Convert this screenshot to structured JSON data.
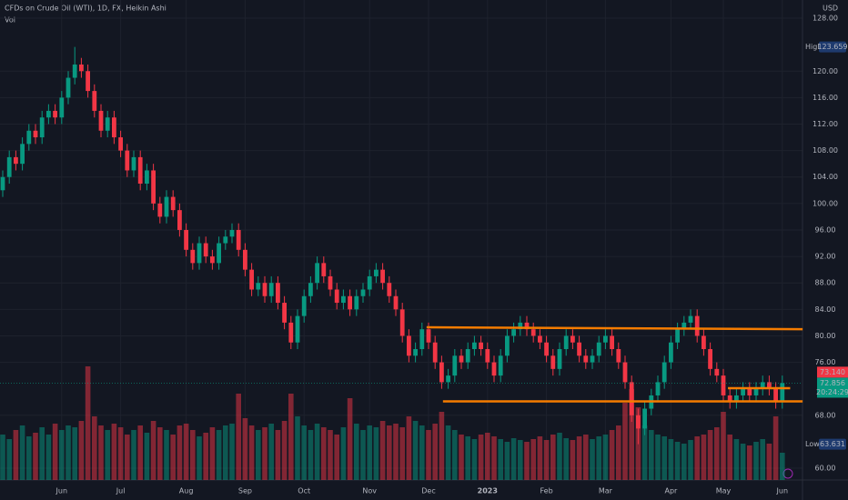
{
  "chart_data": {
    "type": "candlestick",
    "title": "CFDs on Crude Oil (WTI), 1D, FX, Heikin Ashi",
    "volume_title": "Vol",
    "currency": "USD",
    "up_color": "#089981",
    "down_color": "#f23645",
    "grid": true,
    "categories": [
      null,
      null,
      null,
      null,
      null,
      null,
      null,
      null,
      null,
      "Jun",
      null,
      null,
      null,
      null,
      null,
      null,
      null,
      null,
      "Jul",
      null,
      null,
      null,
      null,
      null,
      null,
      null,
      null,
      null,
      "Aug",
      null,
      null,
      null,
      null,
      null,
      null,
      null,
      null,
      "Sep",
      null,
      null,
      null,
      null,
      null,
      null,
      null,
      null,
      "Oct",
      null,
      null,
      null,
      null,
      null,
      null,
      null,
      null,
      null,
      "Nov",
      null,
      null,
      null,
      null,
      null,
      null,
      null,
      null,
      "Dec",
      null,
      null,
      null,
      null,
      null,
      null,
      null,
      null,
      "2023",
      null,
      null,
      null,
      null,
      null,
      null,
      null,
      null,
      "Feb",
      null,
      null,
      null,
      null,
      null,
      null,
      null,
      null,
      "Mar",
      null,
      null,
      null,
      null,
      null,
      null,
      null,
      null,
      null,
      "Apr",
      null,
      null,
      null,
      null,
      null,
      null,
      null,
      "May",
      null,
      null,
      null,
      null,
      null,
      null,
      null,
      null,
      "Jun"
    ],
    "open": [
      102,
      104,
      107,
      106,
      109,
      111,
      110,
      113,
      114,
      113,
      116,
      119,
      121,
      120,
      117,
      114,
      111,
      113,
      110,
      108,
      105,
      107,
      103,
      105,
      100,
      98,
      101,
      99,
      96,
      93,
      91,
      94,
      92,
      91,
      94,
      95,
      96,
      93,
      90,
      87,
      88,
      86,
      88,
      85,
      82,
      79,
      83,
      86,
      88,
      91,
      89,
      87,
      85,
      86,
      84,
      86,
      87,
      89,
      90,
      88,
      86,
      84,
      80,
      77,
      78,
      81,
      79,
      76,
      73,
      74,
      77,
      76,
      78,
      79,
      78,
      76,
      74,
      77,
      80,
      81,
      82,
      81,
      80,
      79,
      77,
      75,
      78,
      80,
      79,
      77,
      76,
      77,
      79,
      80,
      78,
      76,
      73,
      68,
      66,
      69,
      71,
      73,
      76,
      79,
      81,
      82,
      83,
      80,
      78,
      75,
      74,
      71,
      70,
      71,
      72,
      71,
      72,
      73,
      72,
      70
    ],
    "high": [
      105,
      108,
      108,
      110,
      112,
      112,
      114,
      115,
      115,
      117,
      120,
      123.659,
      122,
      121,
      118,
      115,
      114,
      114,
      111,
      109,
      108,
      108,
      106,
      106,
      101,
      102,
      102,
      100,
      97,
      94,
      95,
      95,
      93,
      95,
      96,
      97,
      97,
      94,
      91,
      89,
      89,
      89,
      89,
      86,
      83,
      84,
      87,
      89,
      92,
      92,
      90,
      88,
      87,
      87,
      87,
      88,
      90,
      91,
      91,
      89,
      87,
      85,
      81,
      79,
      82,
      82,
      80,
      77,
      75,
      78,
      78,
      79,
      80,
      80,
      79,
      77,
      78,
      81,
      82,
      83,
      83,
      82,
      81,
      80,
      78,
      79,
      81,
      81,
      80,
      78,
      78,
      80,
      81,
      81,
      79,
      77,
      74,
      69,
      70,
      72,
      74,
      77,
      80,
      82,
      83,
      84,
      84,
      81,
      79,
      76,
      75,
      72,
      72,
      73,
      73,
      73,
      74,
      74,
      73,
      74
    ],
    "low": [
      101,
      103,
      105,
      105,
      108,
      109,
      109,
      112,
      112,
      112,
      115,
      118,
      119,
      116,
      113,
      110,
      110,
      109,
      107,
      104,
      104,
      102,
      102,
      99,
      97,
      97,
      98,
      95,
      92,
      90,
      90,
      91,
      90,
      90,
      93,
      94,
      92,
      89,
      86,
      86,
      85,
      85,
      84,
      81,
      78,
      78,
      82,
      85,
      87,
      88,
      86,
      84,
      84,
      83,
      83,
      85,
      86,
      88,
      87,
      85,
      83,
      79,
      76,
      76,
      77,
      78,
      75,
      72,
      72,
      73,
      75,
      75,
      77,
      77,
      75,
      73,
      73,
      76,
      79,
      80,
      80,
      79,
      78,
      76,
      74,
      74,
      77,
      78,
      76,
      75,
      75,
      76,
      78,
      77,
      75,
      72,
      67,
      63.631,
      65,
      68,
      70,
      72,
      75,
      78,
      80,
      81,
      79,
      77,
      74,
      73,
      70,
      69,
      69,
      70,
      70,
      70,
      71,
      71,
      69,
      69
    ],
    "close": [
      104,
      107,
      106,
      109,
      111,
      110,
      113,
      114,
      113,
      116,
      119,
      121,
      120,
      117,
      114,
      111,
      113,
      110,
      108,
      105,
      107,
      103,
      105,
      100,
      98,
      101,
      99,
      96,
      93,
      91,
      94,
      92,
      91,
      94,
      95,
      96,
      93,
      90,
      87,
      88,
      86,
      88,
      85,
      82,
      79,
      83,
      86,
      88,
      91,
      89,
      87,
      85,
      86,
      84,
      86,
      87,
      89,
      90,
      88,
      86,
      84,
      80,
      77,
      78,
      81,
      79,
      76,
      73,
      74,
      77,
      76,
      78,
      79,
      78,
      76,
      74,
      77,
      80,
      81,
      82,
      81,
      80,
      79,
      77,
      75,
      78,
      80,
      79,
      77,
      76,
      77,
      79,
      80,
      78,
      76,
      73,
      68,
      66,
      69,
      71,
      73,
      76,
      79,
      81,
      82,
      83,
      80,
      78,
      75,
      74,
      71,
      70,
      71,
      72,
      71,
      72,
      73,
      72,
      70,
      72.856
    ],
    "volume": [
      50,
      45,
      55,
      60,
      48,
      52,
      58,
      50,
      62,
      55,
      60,
      58,
      65,
      125,
      70,
      60,
      55,
      62,
      58,
      50,
      55,
      60,
      52,
      65,
      58,
      55,
      50,
      60,
      62,
      55,
      48,
      52,
      58,
      55,
      60,
      62,
      95,
      68,
      60,
      55,
      58,
      62,
      55,
      65,
      95,
      70,
      60,
      55,
      62,
      58,
      55,
      50,
      58,
      90,
      62,
      55,
      60,
      58,
      65,
      60,
      62,
      58,
      70,
      65,
      60,
      55,
      62,
      75,
      60,
      55,
      50,
      48,
      45,
      50,
      52,
      48,
      45,
      42,
      46,
      44,
      42,
      45,
      48,
      44,
      50,
      52,
      46,
      44,
      48,
      50,
      45,
      48,
      50,
      55,
      60,
      85,
      100,
      80,
      60,
      55,
      50,
      48,
      45,
      42,
      40,
      44,
      48,
      50,
      55,
      58,
      75,
      50,
      45,
      40,
      38,
      42,
      45,
      40,
      70,
      30
    ],
    "ylim": [
      58.22,
      130.75
    ],
    "yticks": [
      {
        "value": 128,
        "label": "128.00"
      },
      {
        "value": 120,
        "label": "120.00"
      },
      {
        "value": 116,
        "label": "116.00"
      },
      {
        "value": 112,
        "label": "112.00"
      },
      {
        "value": 108,
        "label": "108.00"
      },
      {
        "value": 104,
        "label": "104.00"
      },
      {
        "value": 100,
        "label": "100.00"
      },
      {
        "value": 96,
        "label": "96.00"
      },
      {
        "value": 92,
        "label": "92.00"
      },
      {
        "value": 88,
        "label": "88.00"
      },
      {
        "value": 84,
        "label": "84.00"
      },
      {
        "value": 80,
        "label": "80.00"
      },
      {
        "value": 76,
        "label": "76.00"
      },
      {
        "value": 68,
        "label": "68.00"
      },
      {
        "value": 60,
        "label": "60.00"
      }
    ],
    "high_marker": {
      "name": "High",
      "value": 123.659
    },
    "low_marker": {
      "name": "Low",
      "value": 63.631
    },
    "last_close": {
      "value": 73.14,
      "label": "73.140"
    },
    "current_price": {
      "value": 72.856
    },
    "countdown": "20:24:29",
    "drawings": [
      {
        "color": "#f57c00",
        "x": [
          64.7,
          122.1
        ],
        "y": [
          81.3,
          81.0
        ]
      },
      {
        "color": "#f57c00",
        "x": [
          67.2,
          122.1
        ],
        "y": [
          70.1,
          70.1
        ]
      },
      {
        "color": "#f57c00",
        "x": [
          110.7,
          120.2
        ],
        "y": [
          72.1,
          72.1
        ]
      }
    ]
  }
}
